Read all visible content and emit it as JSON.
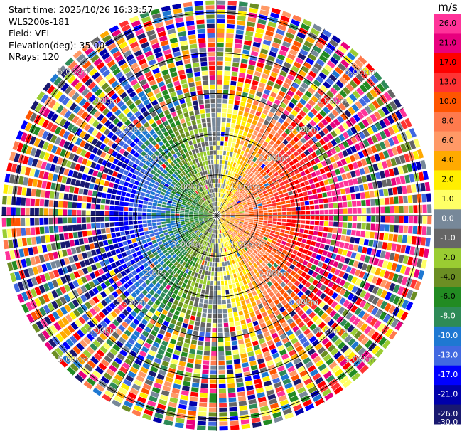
{
  "header": {
    "start_time": "Start time: 2025/10/26 16:33:57",
    "instrument": "WLS200s-181",
    "field": "Field: VEL",
    "elevation": "Elevation(deg): 35.00",
    "nrays": "NRays: 120"
  },
  "chart_data": {
    "type": "heatmap",
    "projection": "polar-ppi",
    "field": "VEL",
    "units": "m/s",
    "n_rays": 120,
    "range_rings_km": [
      1.0,
      2.0,
      3.0,
      4.0,
      5.0
    ],
    "ring_labels": [
      "1.00km",
      "2.00km",
      "3.00km",
      "4.00km",
      "5.00km"
    ],
    "max_range_km": 5.3,
    "colorbar": {
      "title": "m/s",
      "ticks": [
        "26.0",
        "21.0",
        "17.0",
        "13.0",
        "10.0",
        "8.0",
        "6.0",
        "4.0",
        "2.0",
        "1.0",
        "0.0",
        "-1.0",
        "-2.0",
        "-4.0",
        "-6.0",
        "-8.0",
        "-10.0",
        "-13.0",
        "-17.0",
        "-21.0",
        "-26.0",
        "-30.0"
      ],
      "colors": [
        "#ff3399",
        "#e8007e",
        "#ff0000",
        "#ff3333",
        "#ff5500",
        "#ff7a4d",
        "#ff9966",
        "#ffaa00",
        "#ffee00",
        "#ffff66",
        "#778899",
        "#666666",
        "#9acd32",
        "#6b8e23",
        "#228b22",
        "#2e8b57",
        "#1e78d2",
        "#4169e1",
        "#0000ff",
        "#0000aa",
        "#191970"
      ]
    },
    "velocity_structure": {
      "inner_wind_positive_side": "east",
      "inner_wind_negative_side": "west",
      "coherent_radius_km": 2.6,
      "noisy_outer_region": true
    }
  }
}
